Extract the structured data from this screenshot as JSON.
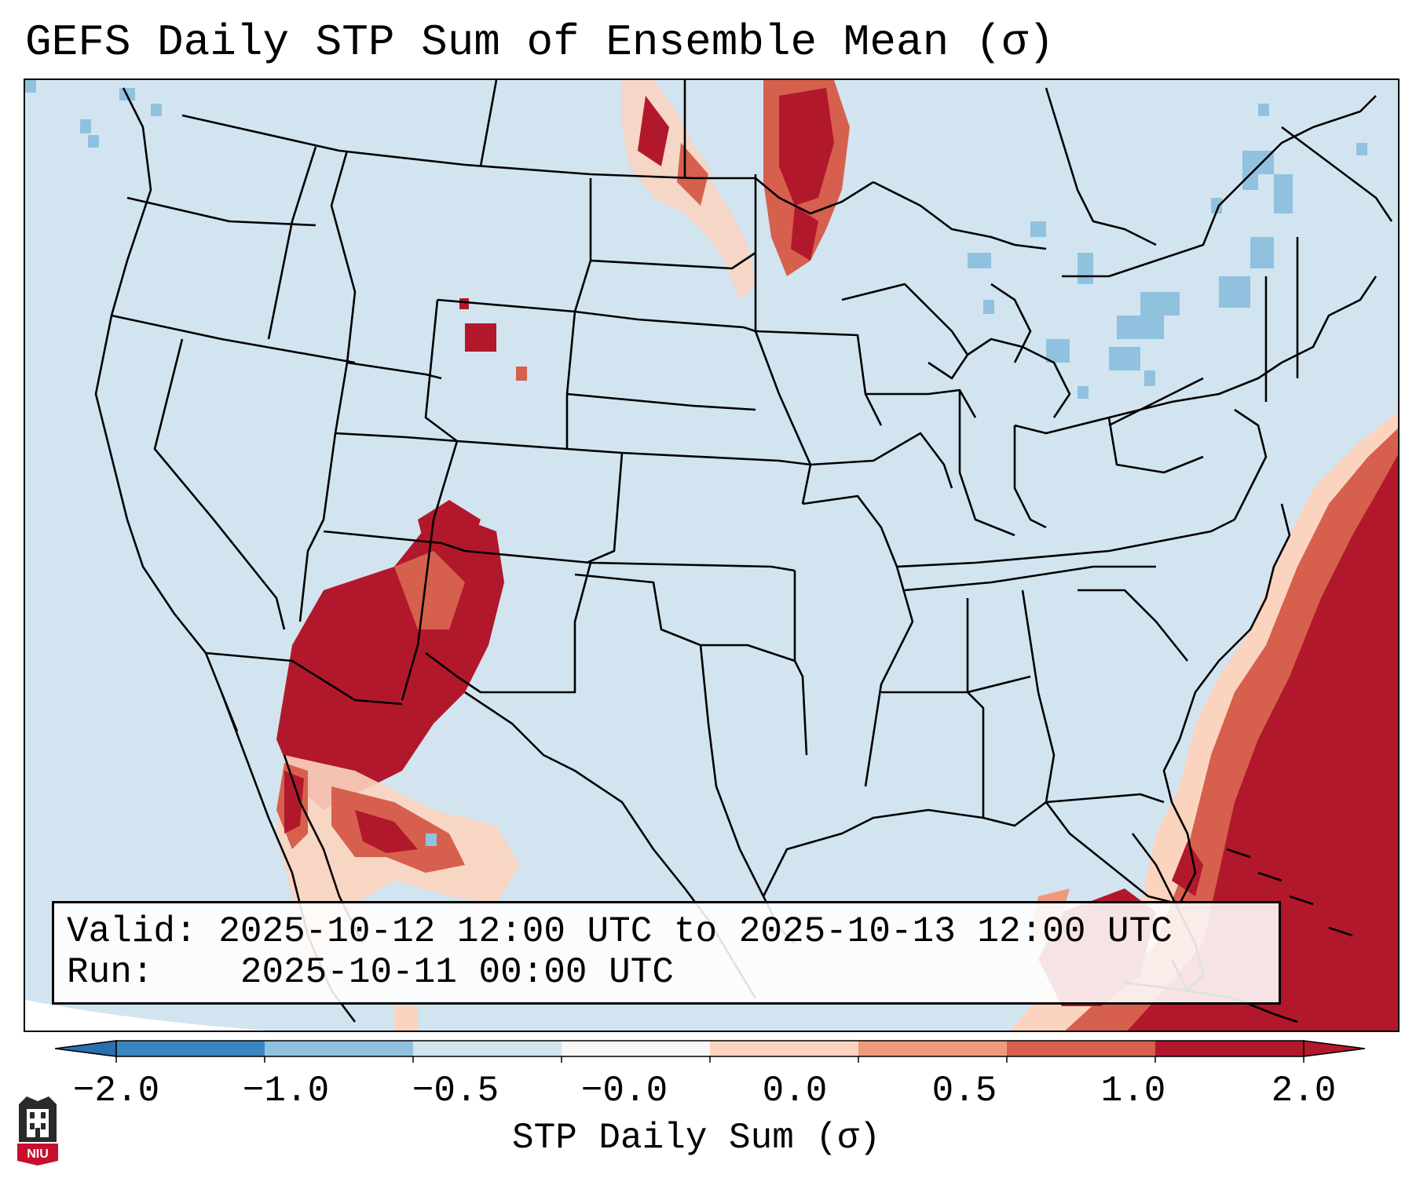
{
  "title": "GEFS Daily STP Sum of Ensemble Mean (σ)",
  "info": {
    "valid_label": "Valid:",
    "valid_value": "2025-10-12 12:00 UTC to 2025-10-13 12:00 UTC",
    "run_label": "Run:",
    "run_value": "2025-10-11 00:00 UTC"
  },
  "colorbar": {
    "label": "STP Daily Sum (σ)",
    "ticks": [
      "−2.0",
      "−1.0",
      "−0.5",
      "−0.0",
      "0.0",
      "0.5",
      "1.0",
      "2.0"
    ],
    "segment_colors": [
      "#3a86c0",
      "#90c2e0",
      "#d2e4ef",
      "#f7f7f7",
      "#fbd4bf",
      "#ef9a7c",
      "#d6604d",
      "#b2182b"
    ],
    "extend_low_color": "#2b6fb0",
    "extend_high_color": "#b2182b"
  },
  "map": {
    "background_color": "#d2e4ef",
    "outside_domain_color": "#ffffff",
    "state_line_color": "#000000"
  },
  "logo": {
    "text": "NIU"
  }
}
